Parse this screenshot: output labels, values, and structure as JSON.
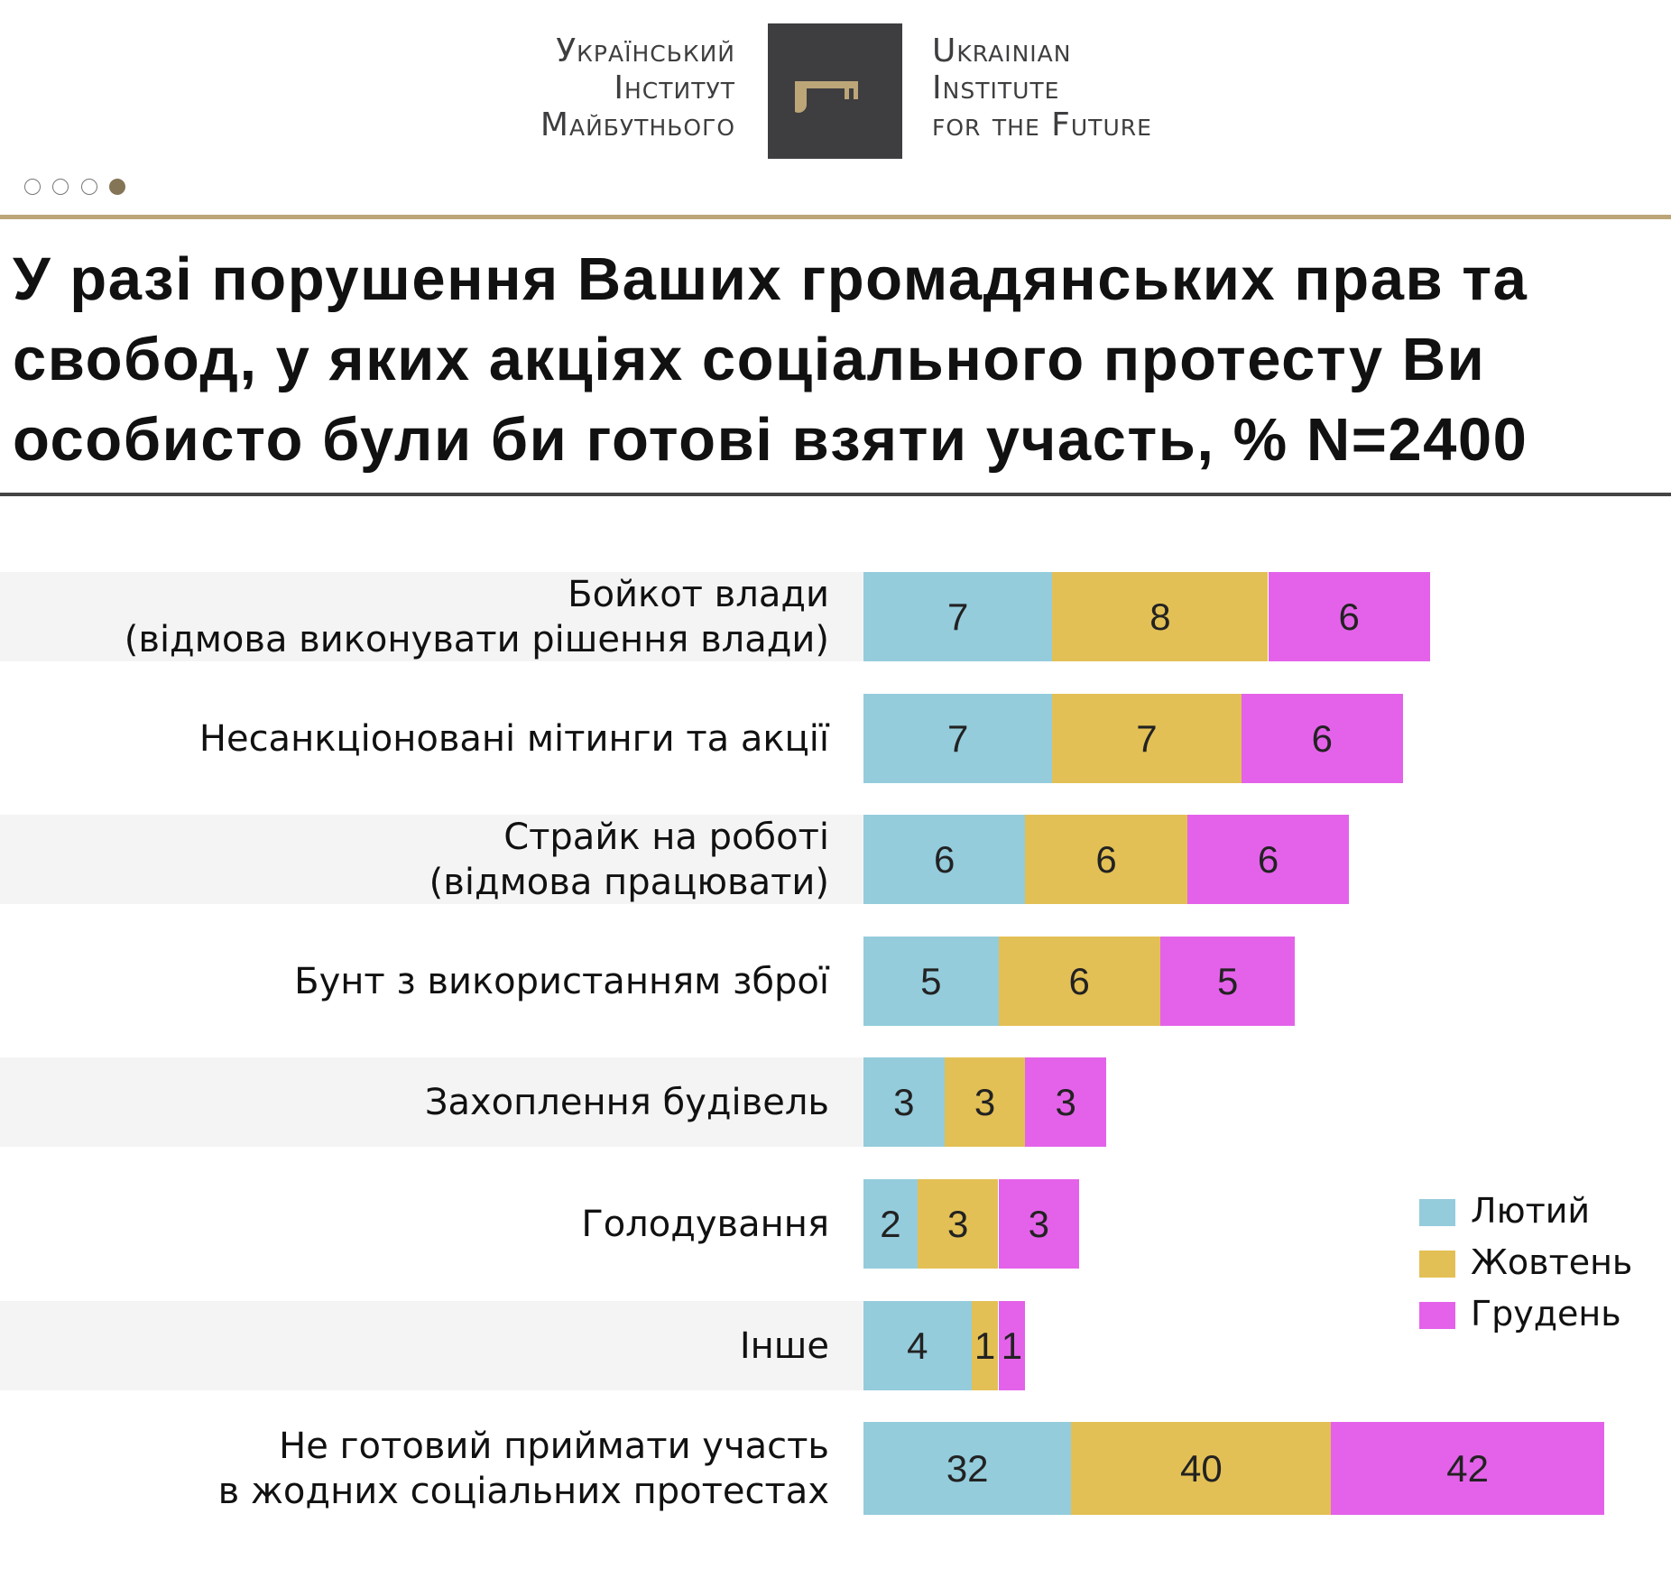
{
  "logo": {
    "ua_lines": [
      "Український",
      "Інститут",
      "Майбутнього"
    ],
    "en_lines": [
      "Ukrainian",
      "Institute",
      "for the Future"
    ],
    "icon": "key-icon"
  },
  "pager": {
    "count": 4,
    "active": 4
  },
  "colors": {
    "accent": "#bca678",
    "lutyi": "#94ccdc",
    "zhovten": "#e3c055",
    "hruden": "#e462ea"
  },
  "chart_data": {
    "type": "bar",
    "stacked": true,
    "orientation": "horizontal",
    "title": "У разі порушення Ваших громадянських прав та свобод, у яких акціях соціального протесту Ви особисто були би готові взяти участь, % N=2400",
    "categories": [
      [
        "Бойкот влади",
        "(відмова виконувати рішення влади)"
      ],
      [
        "Несанкціоновані мітинги та акції"
      ],
      [
        "Страйк на роботі",
        "(відмова працювати)"
      ],
      [
        "Бунт з використанням зброї"
      ],
      [
        "Захоплення будівель"
      ],
      [
        "Голодування"
      ],
      [
        "Інше"
      ],
      [
        "Не готовий приймати участь",
        "в жодних соціальних протестах"
      ]
    ],
    "series": [
      {
        "name": "Лютий",
        "color": "#94ccdc",
        "values": [
          7,
          7,
          6,
          5,
          3,
          2,
          4,
          32
        ]
      },
      {
        "name": "Жовтень",
        "color": "#e3c055",
        "values": [
          8,
          7,
          6,
          6,
          3,
          3,
          1,
          40
        ]
      },
      {
        "name": "Грудень",
        "color": "#e462ea",
        "values": [
          6,
          6,
          6,
          5,
          3,
          3,
          1,
          42
        ]
      }
    ],
    "legend": "right",
    "grid": false
  }
}
